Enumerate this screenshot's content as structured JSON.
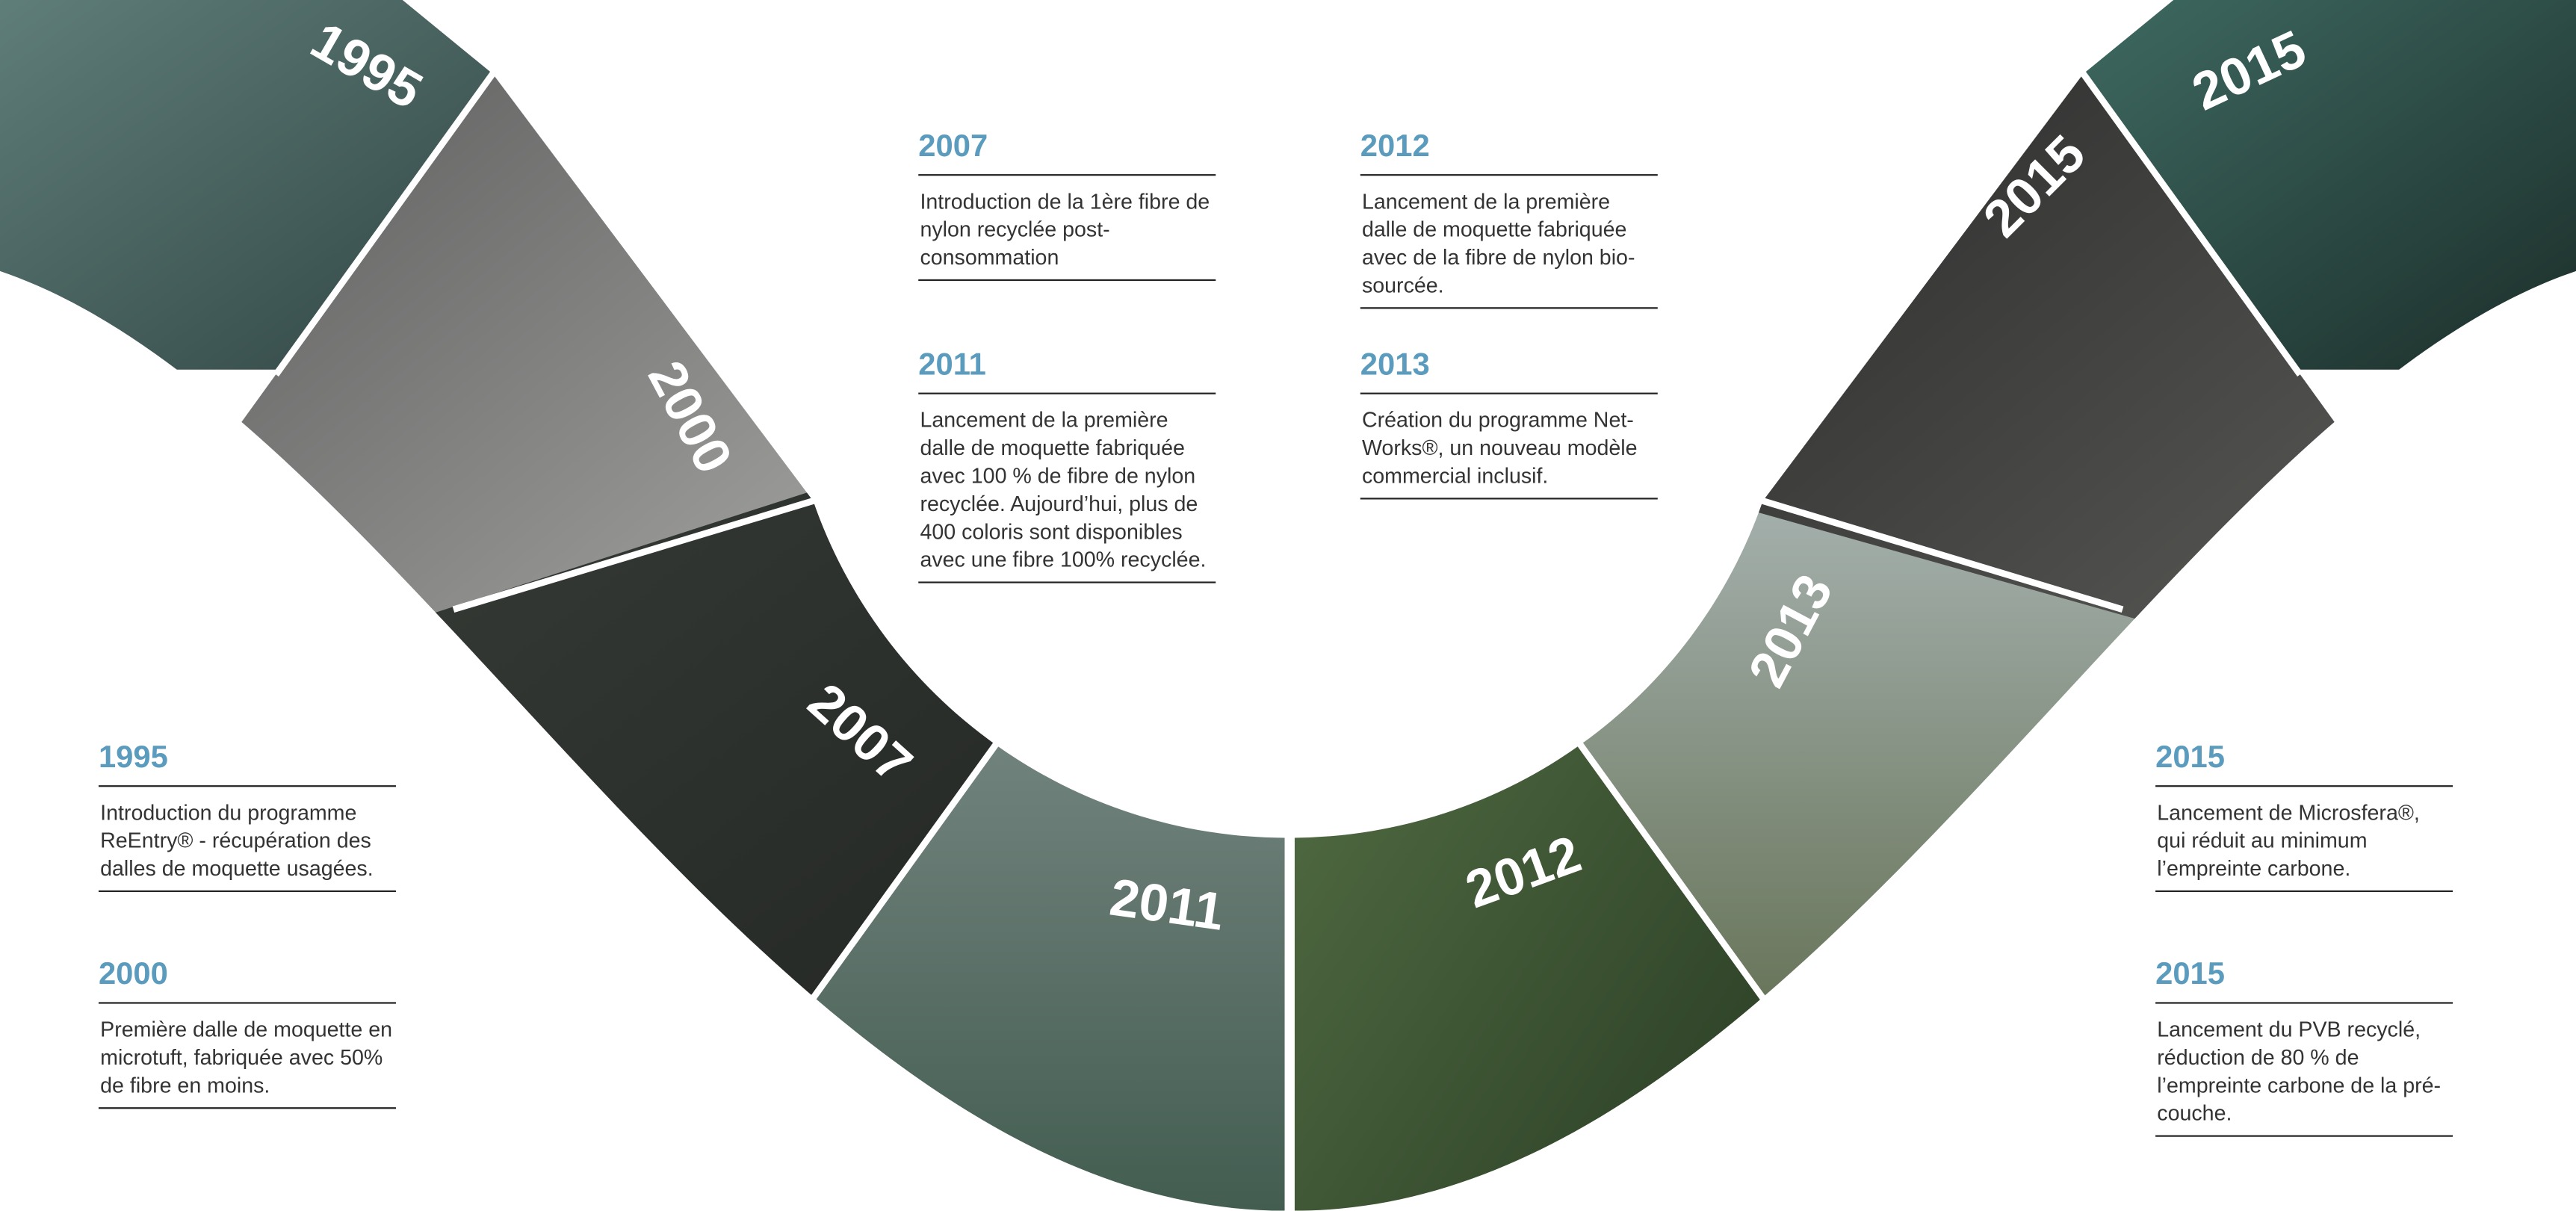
{
  "photos": [
    {
      "year": "1995"
    },
    {
      "year": "2000"
    },
    {
      "year": "2007"
    },
    {
      "year": "2011"
    },
    {
      "year": "2012"
    },
    {
      "year": "2013"
    },
    {
      "year": "2015"
    },
    {
      "year": "2015"
    }
  ],
  "entries": [
    {
      "year": "1995",
      "text": "Introduction du programme ReEntry® - récupération des dalles de moquette usagées."
    },
    {
      "year": "2000",
      "text": "Première dalle de moquette en microtuft, fabriquée avec 50% de fibre en moins."
    },
    {
      "year": "2007",
      "text": "Introduction de la 1ère fibre de nylon recyclée post-consommation"
    },
    {
      "year": "2011",
      "text": "Lancement de la première dalle de moquette fabriquée avec 100 % de fibre de nylon recyclée. Aujourd’hui, plus de 400 coloris sont disponibles avec une fibre 100% recyclée."
    },
    {
      "year": "2012",
      "text": "Lancement de la première dalle de moquette fabriquée avec de la fibre de nylon bio-sourcée."
    },
    {
      "year": "2013",
      "text": "Création du programme Net-Works®, un nouveau modèle commercial inclusif."
    },
    {
      "year": "2015",
      "text": "Lancement de Microsfera®, qui réduit au minimum l’empreinte carbone."
    },
    {
      "year": "2015",
      "text": "Lancement du PVB recyclé, réduction de 80 % de l’empreinte carbone de la pré-couche."
    }
  ]
}
